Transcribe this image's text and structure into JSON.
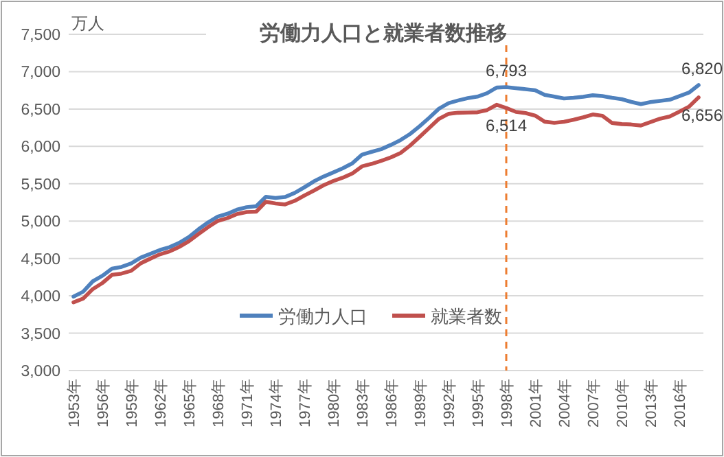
{
  "chart_data": {
    "type": "line",
    "title": "労働力人口と就業者数推移",
    "ylabel": "万人",
    "categories": [
      "1953年",
      null,
      null,
      "1956年",
      null,
      null,
      "1959年",
      null,
      null,
      "1962年",
      null,
      null,
      "1965年",
      null,
      null,
      "1968年",
      null,
      null,
      "1971年",
      null,
      null,
      "1974年",
      null,
      null,
      "1977年",
      null,
      null,
      "1980年",
      null,
      null,
      "1983年",
      null,
      null,
      "1986年",
      null,
      null,
      "1989年",
      null,
      null,
      "1992年",
      null,
      null,
      "1995年",
      null,
      null,
      "1998年",
      null,
      null,
      "2001年",
      null,
      null,
      "2004年",
      null,
      null,
      "2007年",
      null,
      null,
      "2010年",
      null,
      null,
      "2013年",
      null,
      null,
      "2016年",
      null,
      null
    ],
    "series": [
      {
        "name": "労働力人口",
        "color": "#4f81bd",
        "values": [
          3989,
          4055,
          4194,
          4268,
          4363,
          4387,
          4433,
          4511,
          4562,
          4614,
          4652,
          4710,
          4787,
          4891,
          4983,
          5061,
          5098,
          5153,
          5186,
          5199,
          5326,
          5310,
          5323,
          5378,
          5452,
          5532,
          5596,
          5650,
          5707,
          5774,
          5889,
          5927,
          5963,
          6020,
          6084,
          6166,
          6270,
          6384,
          6505,
          6578,
          6615,
          6645,
          6666,
          6711,
          6787,
          6793,
          6779,
          6766,
          6752,
          6689,
          6666,
          6642,
          6651,
          6664,
          6684,
          6674,
          6650,
          6632,
          6596,
          6565,
          6593,
          6609,
          6625,
          6673,
          6720,
          6820
        ]
      },
      {
        "name": "就業者数",
        "color": "#c0504d",
        "values": [
          3913,
          3963,
          4090,
          4171,
          4281,
          4298,
          4335,
          4436,
          4498,
          4556,
          4595,
          4655,
          4730,
          4827,
          4920,
          5002,
          5040,
          5094,
          5121,
          5126,
          5259,
          5237,
          5223,
          5271,
          5342,
          5408,
          5479,
          5536,
          5581,
          5638,
          5733,
          5766,
          5807,
          5853,
          5911,
          6011,
          6128,
          6249,
          6369,
          6436,
          6450,
          6453,
          6457,
          6486,
          6557,
          6514,
          6462,
          6446,
          6412,
          6330,
          6316,
          6329,
          6356,
          6389,
          6427,
          6409,
          6314,
          6298,
          6293,
          6280,
          6326,
          6371,
          6401,
          6465,
          6530,
          6656
        ]
      }
    ],
    "ylim": [
      3000,
      7500
    ],
    "yticks": [
      {
        "value": 3000,
        "label": "3,000"
      },
      {
        "value": 3500,
        "label": "3,500"
      },
      {
        "value": 4000,
        "label": "4,000"
      },
      {
        "value": 4500,
        "label": "4,500"
      },
      {
        "value": 5000,
        "label": "5,000"
      },
      {
        "value": 5500,
        "label": "5,500"
      },
      {
        "value": 6000,
        "label": "6,000"
      },
      {
        "value": 6500,
        "label": "6,500"
      },
      {
        "value": 7000,
        "label": "7,000"
      },
      {
        "value": 7500,
        "label": "7,500"
      }
    ],
    "grid": "y",
    "legend": "bottom",
    "marker": "none",
    "line_style": "solid",
    "ref_lines": [
      {
        "axis": "x",
        "value": "1998年",
        "color": "#ed7d31",
        "line_style": "dashed"
      }
    ],
    "annotations": [
      {
        "text": "6,793",
        "x": "1998年",
        "y": 6793
      },
      {
        "text": "6,514",
        "x": "1998年",
        "y": 6514
      },
      {
        "text": "6,820",
        "y": 6820
      },
      {
        "text": "6,656",
        "y": 6656
      }
    ]
  }
}
